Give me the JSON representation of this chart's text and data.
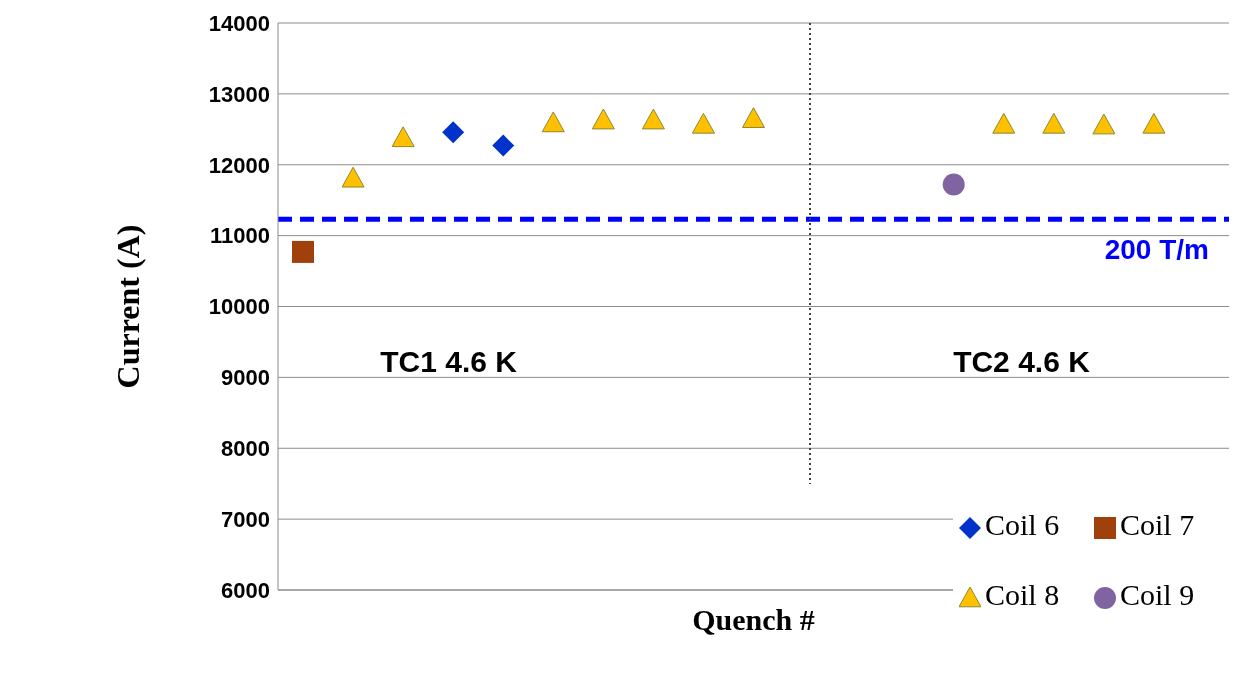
{
  "chart_data": {
    "type": "scatter",
    "xlabel": "Quench #",
    "ylabel": "Current (A)",
    "categories": [
      null,
      null,
      null,
      null,
      null,
      null,
      null,
      null,
      null,
      null,
      null,
      null,
      null,
      null,
      null,
      null,
      null,
      null,
      null
    ],
    "ylim": [
      6000,
      14000
    ],
    "yticks": [
      6000,
      7000,
      8000,
      9000,
      10000,
      11000,
      12000,
      13000,
      14000
    ],
    "tick_labels": "y",
    "grid": "y",
    "legend": "bottom right",
    "series": [
      {
        "name": "Coil 6",
        "color": "#0033cc",
        "marker": "diamond",
        "values": [
          null,
          null,
          null,
          12460,
          12270,
          null,
          null,
          null,
          null,
          null,
          null,
          null,
          null,
          null,
          null,
          null,
          null,
          null,
          null
        ]
      },
      {
        "name": "Coil 7",
        "color": "#a0410d",
        "marker": "square",
        "values": [
          10770,
          null,
          null,
          null,
          null,
          null,
          null,
          null,
          null,
          null,
          null,
          null,
          null,
          null,
          null,
          null,
          null,
          null,
          null
        ]
      },
      {
        "name": "Coil 8",
        "color": "#ffc000",
        "marker": "triangle",
        "values": [
          null,
          11810,
          12380,
          null,
          null,
          12590,
          12630,
          12630,
          12570,
          12650,
          null,
          null,
          null,
          null,
          12570,
          12570,
          12560,
          12570,
          null
        ]
      },
      {
        "name": "Coil 9",
        "color": "#8064a2",
        "marker": "circle",
        "values": [
          null,
          null,
          null,
          null,
          null,
          null,
          null,
          null,
          null,
          null,
          null,
          null,
          null,
          11720,
          null,
          null,
          null,
          null,
          null
        ]
      }
    ],
    "ref_lines": [
      {
        "axis": "y",
        "value": 11230,
        "label": "200 T/m",
        "color": "#0000ff",
        "line_style": "dashed"
      }
    ],
    "annotations": [
      "TC1 4.6 K",
      "TC2 4.6 K"
    ]
  }
}
